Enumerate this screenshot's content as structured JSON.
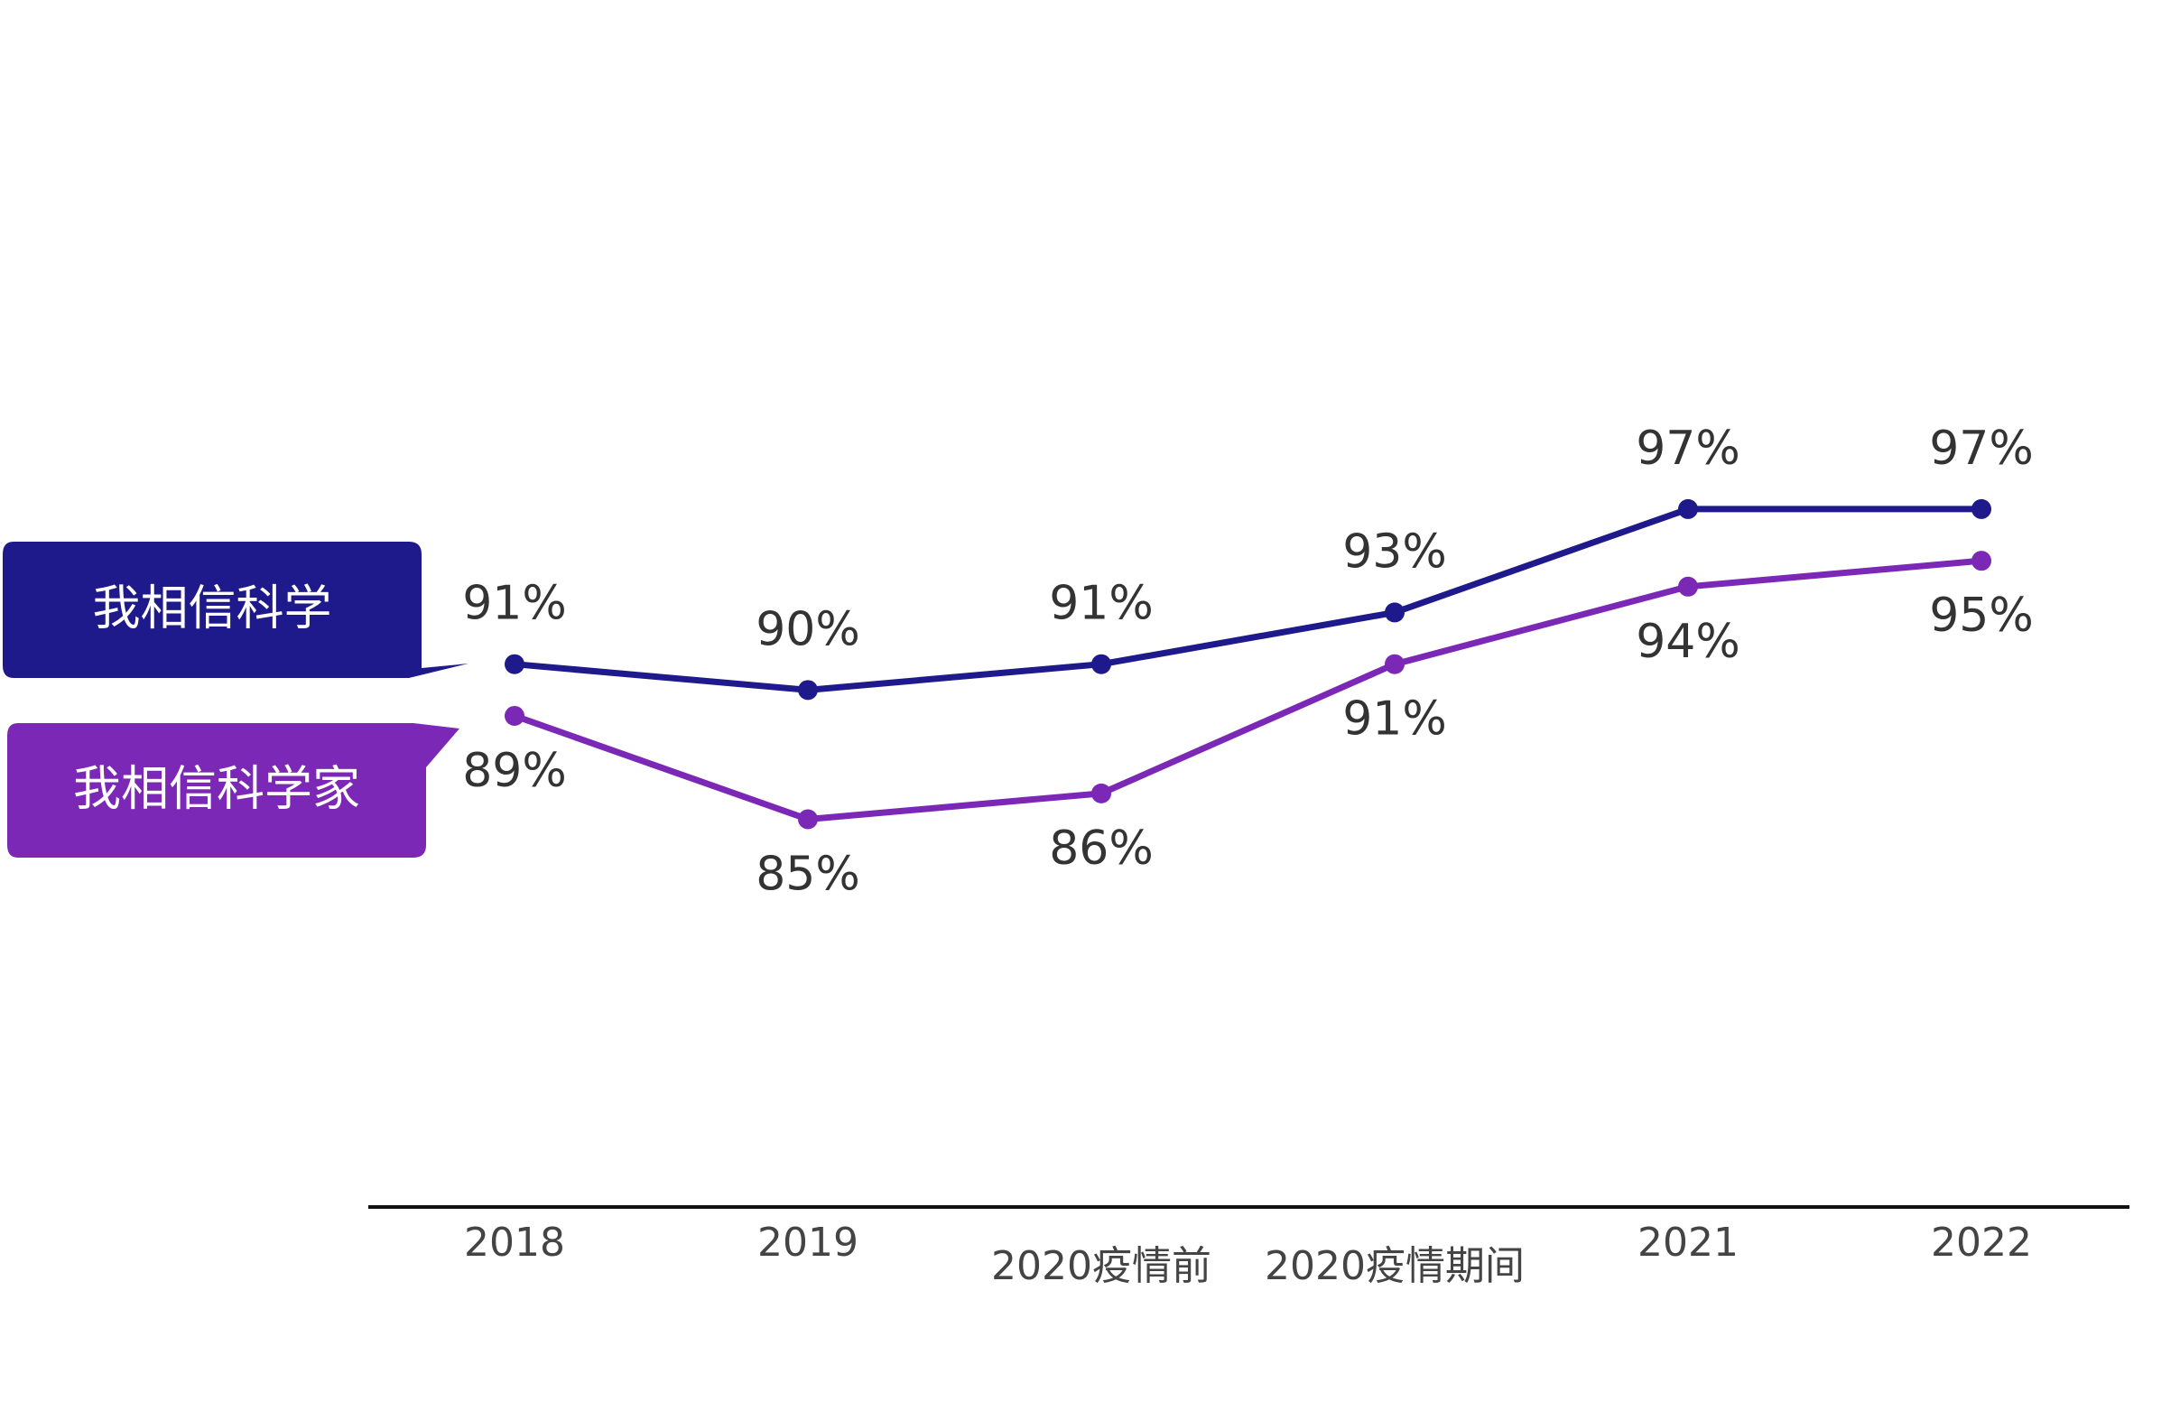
{
  "chart_data": {
    "type": "line",
    "categories": [
      "2018",
      "2019",
      "2020疫情前",
      "2020疫情期间",
      "2021",
      "2022"
    ],
    "series": [
      {
        "name": "我相信科学",
        "color": "#1e1a8c",
        "values": [
          91,
          90,
          91,
          93,
          97,
          97
        ],
        "value_labels": [
          "91%",
          "90%",
          "91%",
          "93%",
          "97%",
          "97%"
        ]
      },
      {
        "name": "我相信科学家",
        "color": "#7c28b6",
        "values": [
          89,
          85,
          86,
          91,
          94,
          95
        ],
        "value_labels": [
          "89%",
          "85%",
          "86%",
          "91%",
          "94%",
          "95%"
        ]
      }
    ],
    "ylim": [
      70,
      100
    ]
  }
}
